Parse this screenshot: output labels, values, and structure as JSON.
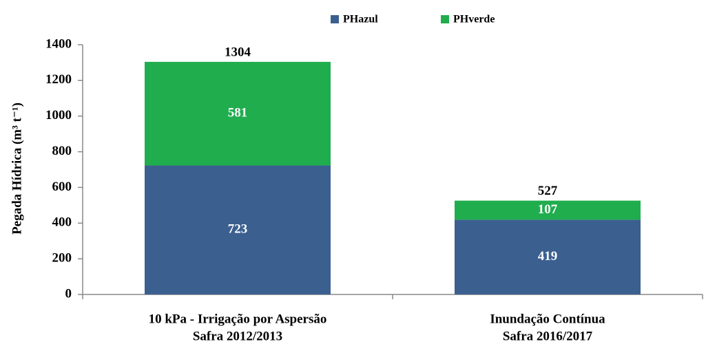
{
  "chart_data": {
    "type": "stacked_bar",
    "y_label": "Pegada Hídrica (m³ t⁻¹)",
    "categories": [
      [
        "10 kPa - Irrigação por Aspersão",
        "Safra 2012/2013"
      ],
      [
        "Inundação Contínua",
        "Safra 2016/2017"
      ]
    ],
    "series": [
      {
        "name": "PHazul",
        "color": "#3b5f8f",
        "values": [
          723,
          419
        ]
      },
      {
        "name": "PHverde",
        "color": "#20ad4e",
        "values": [
          581,
          107
        ]
      }
    ],
    "totals": [
      1304,
      527
    ],
    "ylim": [
      0,
      1400
    ],
    "yticks": [
      0,
      200,
      400,
      600,
      800,
      1000,
      1200,
      1400
    ]
  }
}
